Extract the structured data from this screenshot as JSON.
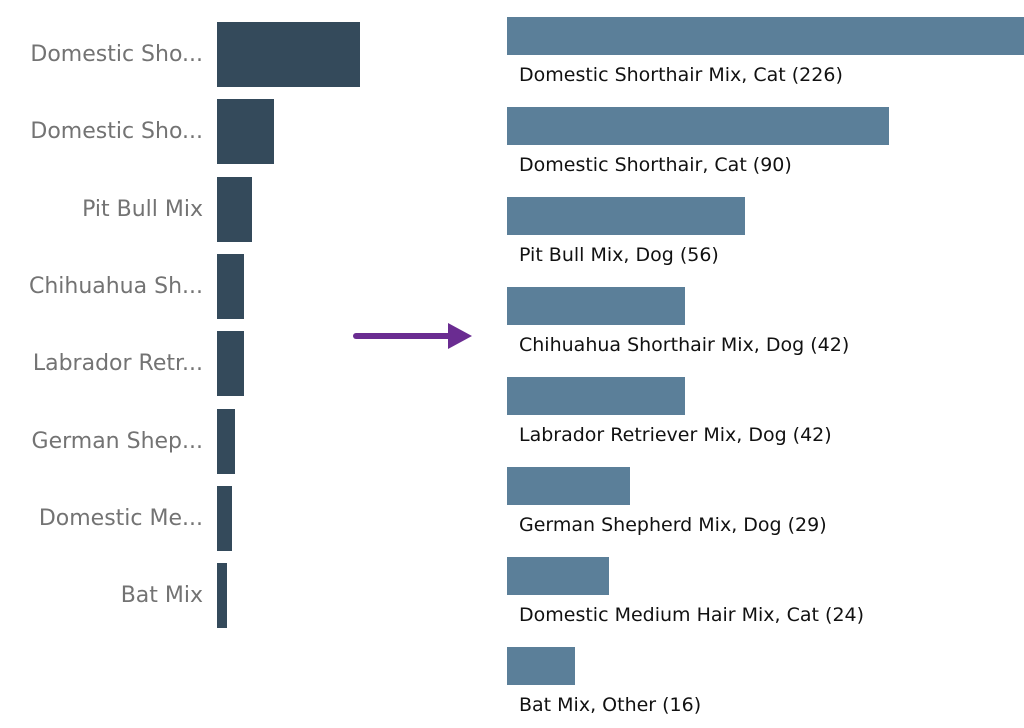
{
  "chart_data": [
    {
      "type": "bar",
      "orientation": "horizontal",
      "categories": [
        "Domestic Sho...",
        "Domestic Sho...",
        "Pit Bull Mix",
        "Chihuahua Sh...",
        "Labrador Retr...",
        "German Shep...",
        "Domestic Me...",
        "Bat Mix"
      ],
      "values": [
        226,
        90,
        56,
        42,
        42,
        29,
        24,
        16
      ],
      "bar_color": "#344a5b",
      "grid": false
    },
    {
      "type": "bar",
      "orientation": "horizontal",
      "categories": [
        "Domestic Shorthair Mix, Cat (226)",
        "Domestic Shorthair, Cat (90)",
        "Pit Bull Mix, Dog (56)",
        "Chihuahua Shorthair Mix, Dog (42)",
        "Labrador Retriever Mix, Dog (42)",
        "German Shepherd Mix, Dog (29)",
        "Domestic Medium Hair Mix, Cat (24)",
        "Bat Mix, Other (16)"
      ],
      "values": [
        226,
        90,
        56,
        42,
        42,
        29,
        24,
        16
      ],
      "bar_color": "#5b7f99",
      "grid": false
    }
  ],
  "arrow_color": "#6a2c91"
}
